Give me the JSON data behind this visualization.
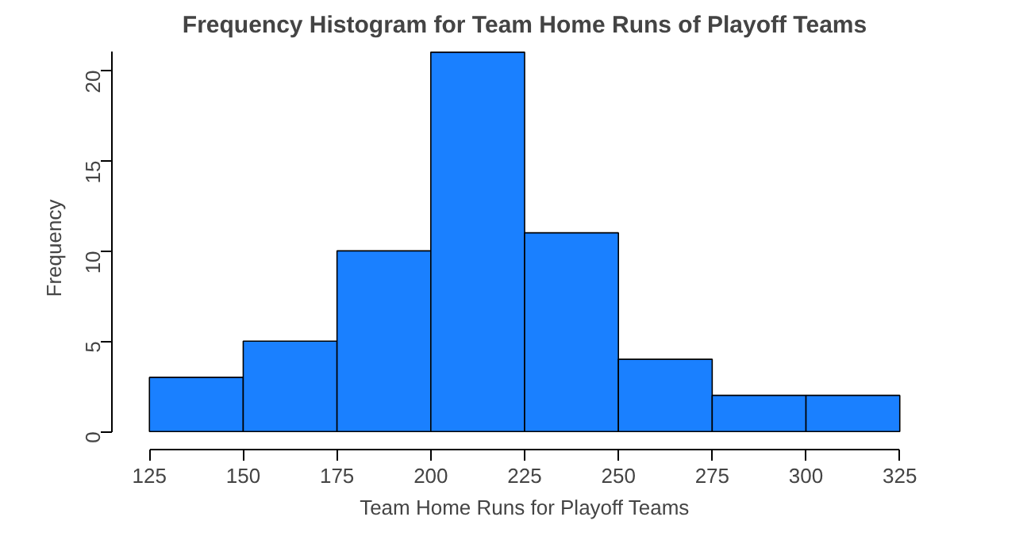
{
  "chart_data": {
    "type": "histogram",
    "title": "Frequency Histogram for Team Home Runs of Playoff Teams",
    "xlabel": "Team Home Runs for Playoff Teams",
    "ylabel": "Frequency",
    "bins": [
      125,
      150,
      175,
      200,
      225,
      250,
      275,
      300,
      325
    ],
    "values": [
      3,
      5,
      10,
      21,
      11,
      4,
      2,
      2
    ],
    "color": "#1a80ff",
    "xlim": [
      125,
      325
    ],
    "ylim": [
      0,
      21
    ],
    "xticks": [
      125,
      150,
      175,
      200,
      225,
      250,
      275,
      300,
      325
    ],
    "yticks": [
      0,
      5,
      10,
      15,
      20
    ],
    "grid": false
  }
}
